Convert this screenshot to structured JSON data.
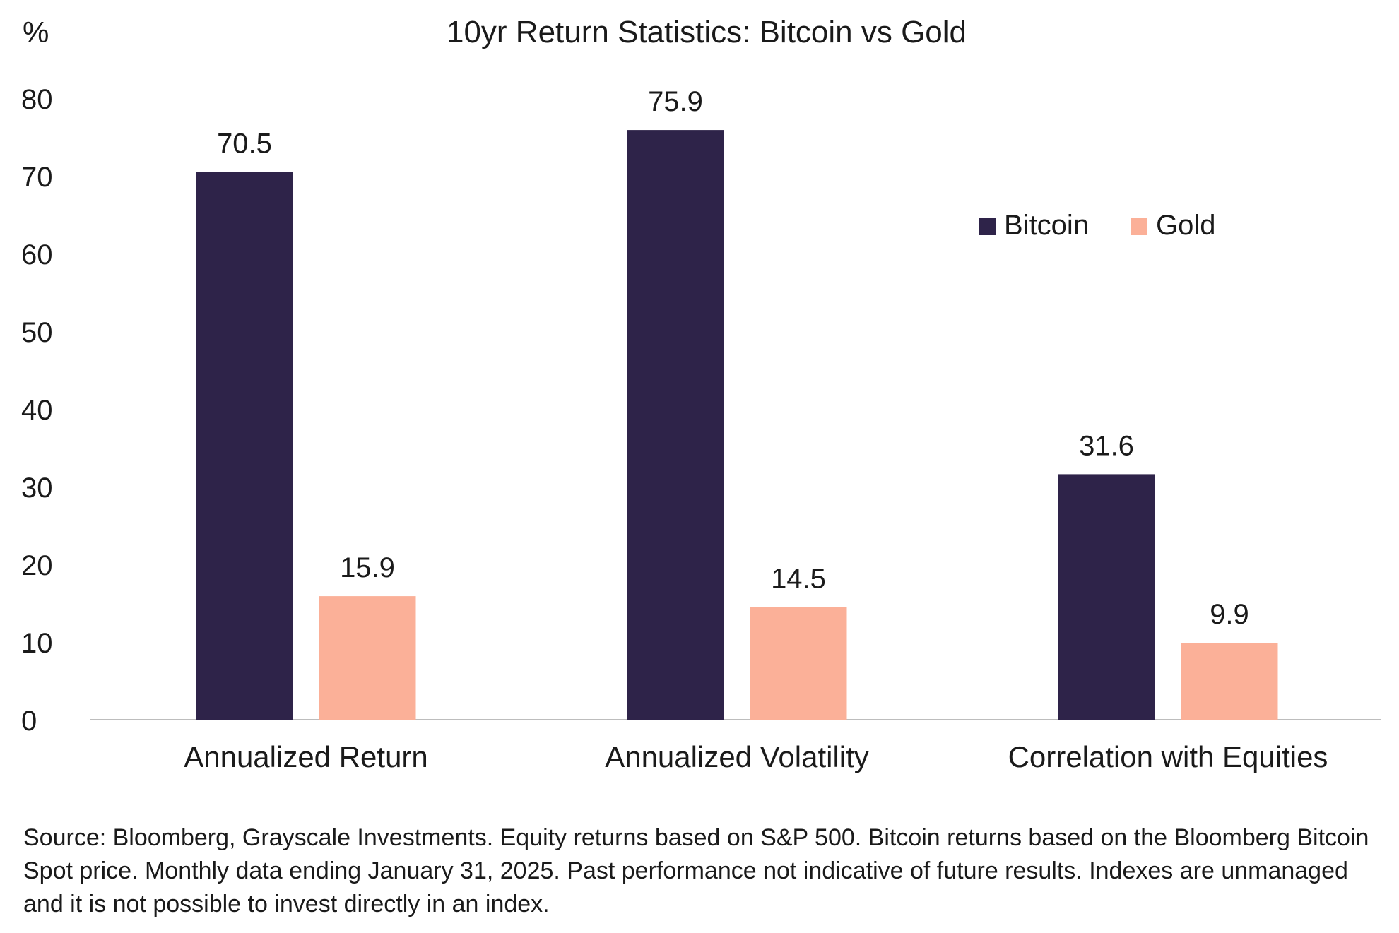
{
  "chart_data": {
    "type": "bar",
    "title": "10yr Return Statistics: Bitcoin vs Gold",
    "ylabel": "%",
    "xlabel": "",
    "categories": [
      "Annualized Return",
      "Annualized Volatility",
      "Correlation with Equities"
    ],
    "series": [
      {
        "name": "Bitcoin",
        "color": "#2e2349",
        "values": [
          70.5,
          75.9,
          31.6
        ],
        "labels": [
          "70.5",
          "75.9",
          "31.6"
        ]
      },
      {
        "name": "Gold",
        "color": "#fbb098",
        "values": [
          15.9,
          14.5,
          9.9
        ],
        "labels": [
          "15.9",
          "14.5",
          "9.9"
        ]
      }
    ],
    "ylim": [
      0,
      80
    ],
    "yticks": [
      0,
      10,
      20,
      30,
      40,
      50,
      60,
      70,
      80
    ],
    "grid": false,
    "legend_position": "top-right"
  },
  "source_note": "Source: Bloomberg, Grayscale Investments. Equity returns based on S&P 500. Bitcoin returns based on the Bloomberg Bitcoin Spot price. Monthly data ending January 31, 2025. Past performance not indicative of future results. Indexes are unmanaged and it is not possible to invest directly in an index."
}
